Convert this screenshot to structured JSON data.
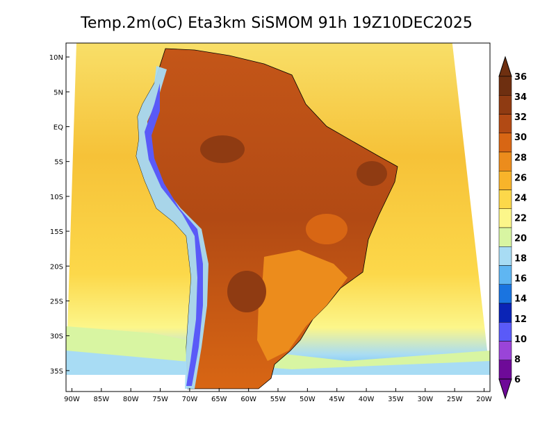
{
  "title": "Temp.2m(oC) Eta3km SiSMOM 91h 19Z10DEC2025",
  "map": {
    "lon_min": -91,
    "lon_max": -19,
    "lat_min": -38,
    "lat_max": 12,
    "lat_labels": [
      "10N",
      "5N",
      "EQ",
      "5S",
      "10S",
      "15S",
      "20S",
      "25S",
      "30S",
      "35S"
    ],
    "lat_values": [
      10,
      5,
      0,
      -5,
      -10,
      -15,
      -20,
      -25,
      -30,
      -35
    ],
    "lon_labels": [
      "90W",
      "85W",
      "80W",
      "75W",
      "70W",
      "65W",
      "60W",
      "55W",
      "50W",
      "45W",
      "40W",
      "35W",
      "30W",
      "25W",
      "20W"
    ],
    "lon_values": [
      -90,
      -85,
      -80,
      -75,
      -70,
      -65,
      -60,
      -55,
      -50,
      -45,
      -40,
      -35,
      -30,
      -25,
      -20
    ]
  },
  "colorbar": {
    "labels": [
      "36",
      "34",
      "32",
      "30",
      "28",
      "26",
      "24",
      "22",
      "20",
      "18",
      "16",
      "14",
      "12",
      "10",
      "8",
      "6"
    ],
    "colors_top_to_bottom": [
      "#6e2f10",
      "#8f3b12",
      "#b24a14",
      "#d86614",
      "#ec8c1c",
      "#f8b42a",
      "#fcd84a",
      "#fcf68a",
      "#d8f5a2",
      "#a8dcf4",
      "#5fb6f2",
      "#1a74e0",
      "#0a24b6",
      "#5a5af8",
      "#9a44d8",
      "#6e0a98"
    ]
  },
  "colors": {
    "ocean_north": "#f8e06a",
    "ocean_mid": "#f6c238",
    "ocean_south": "#fcf68a",
    "land_hot": "#b24a14",
    "land_warm": "#d86614",
    "andes_cold": "#5a5af8"
  }
}
